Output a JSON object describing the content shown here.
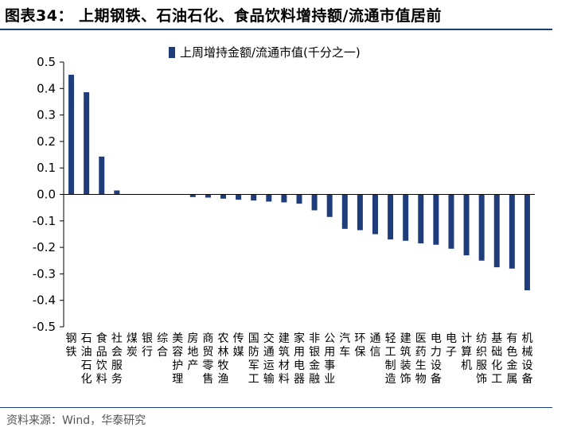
{
  "header": {
    "title": "图表34：  上期钢铁、石油石化、食品饮料增持额/流通市值居前"
  },
  "footer": {
    "source": "资料来源：Wind，华泰研究"
  },
  "colors": {
    "bar": "#1f3d7a",
    "rule": "#1a3d7c"
  },
  "chart_data": {
    "type": "bar",
    "title": "",
    "xlabel": "",
    "ylabel": "",
    "ylim": [
      -0.5,
      0.5
    ],
    "yticks": [
      0.5,
      0.4,
      0.3,
      0.2,
      0.1,
      0.0,
      -0.1,
      -0.2,
      -0.3,
      -0.4,
      -0.5
    ],
    "ytick_labels": [
      "0.5",
      "0.4",
      "0.3",
      "0.2",
      "0.1",
      "0.0",
      "-0.1",
      "-0.2",
      "-0.3",
      "-0.4",
      "-0.5"
    ],
    "legend": {
      "label": "上周增持金额/流通市值(千分之一)",
      "position": "top"
    },
    "categories": [
      "钢铁",
      "石油石化",
      "食品饮料",
      "社会服务",
      "煤炭",
      "银行",
      "综合",
      "美容护理",
      "房地产",
      "商贸零售",
      "农林牧渔",
      "传媒",
      "国防军工",
      "交通运输",
      "建筑材料",
      "家用电器",
      "非银金融",
      "公用事业",
      "汽车",
      "环保",
      "通信",
      "轻工制造",
      "建筑装饰",
      "医药生物",
      "电力设备",
      "电子",
      "计算机",
      "纺织服饰",
      "基础化工",
      "有色金属",
      "机械设备"
    ],
    "values": [
      0.452,
      0.386,
      0.143,
      0.015,
      0.0,
      0.0,
      0.0,
      0.0,
      -0.01,
      -0.012,
      -0.016,
      -0.02,
      -0.023,
      -0.027,
      -0.03,
      -0.035,
      -0.06,
      -0.085,
      -0.13,
      -0.135,
      -0.15,
      -0.17,
      -0.175,
      -0.185,
      -0.19,
      -0.205,
      -0.23,
      -0.25,
      -0.275,
      -0.28,
      -0.362
    ]
  }
}
